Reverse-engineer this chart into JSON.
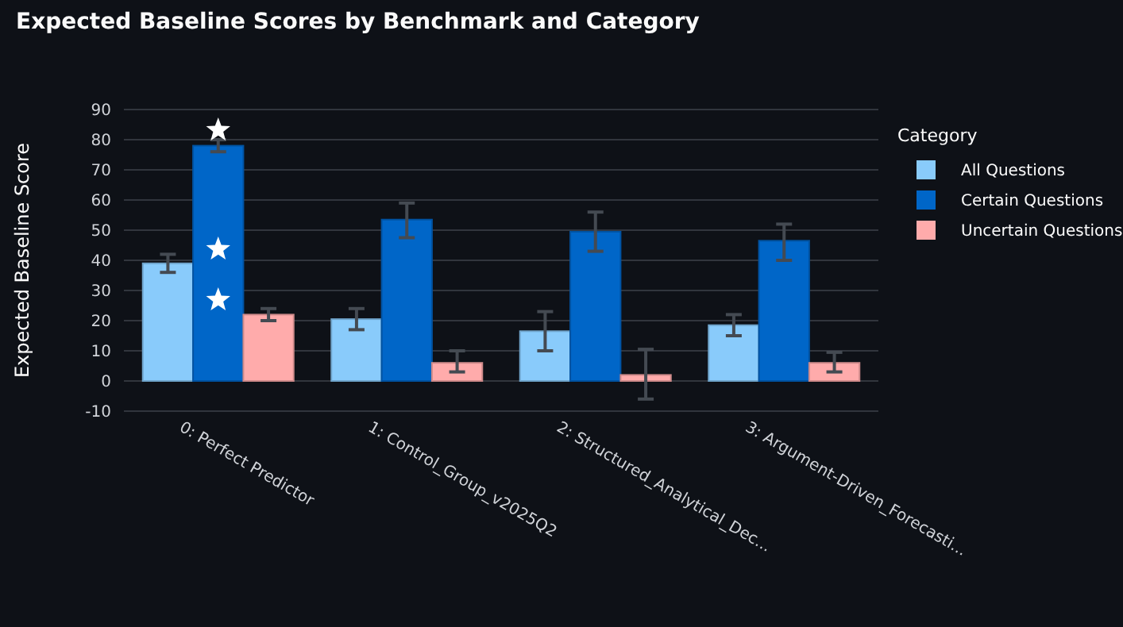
{
  "chart_data": {
    "type": "bar",
    "title": "Expected Baseline Scores by Benchmark and Category",
    "ylabel": "Expected Baseline Score",
    "legend_title": "Category",
    "categories": [
      "0: Perfect Predictor",
      "1: Control_Group_v2025Q2",
      "2: Structured_Analytical_Dec...",
      "3: Argument-Driven_Forecasti..."
    ],
    "series": [
      {
        "name": "All Questions",
        "color": "#89cbfb",
        "values": [
          39,
          20.5,
          16.5,
          18.5
        ],
        "errors": [
          [
            36,
            42
          ],
          [
            17,
            24
          ],
          [
            10,
            23
          ],
          [
            15,
            22
          ]
        ]
      },
      {
        "name": "Certain Questions",
        "color": "#0066c8",
        "values": [
          78,
          53.5,
          49.5,
          46.5
        ],
        "errors": [
          [
            76,
            80
          ],
          [
            47.5,
            59
          ],
          [
            43,
            56
          ],
          [
            40,
            52
          ]
        ]
      },
      {
        "name": "Uncertain Questions",
        "color": "#ffabab",
        "values": [
          22,
          6,
          2,
          6
        ],
        "errors": [
          [
            20,
            24
          ],
          [
            3,
            10
          ],
          [
            -6,
            10.5
          ],
          [
            3,
            9.5
          ]
        ]
      }
    ],
    "ylim": [
      -10,
      90
    ],
    "yticks": [
      -10,
      0,
      10,
      20,
      30,
      40,
      50,
      60,
      70,
      80,
      90
    ],
    "grid": "y",
    "legend": "right"
  }
}
